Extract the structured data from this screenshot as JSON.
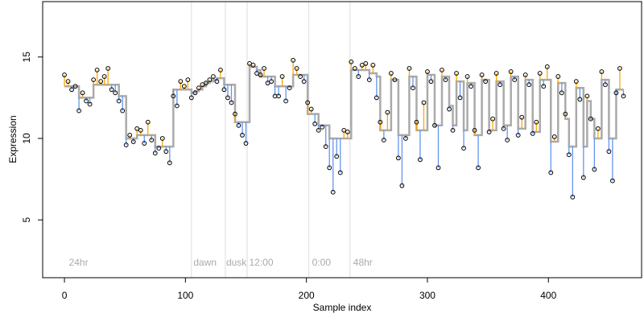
{
  "chart_data": {
    "type": "scatter",
    "xlabel": "Sample index",
    "ylabel": "Expression",
    "xlim": [
      -18,
      477
    ],
    "ylim": [
      1.45,
      18.4
    ],
    "xticks": [
      0,
      100,
      200,
      300,
      400
    ],
    "yticks": [
      5,
      10,
      15
    ],
    "point_color": "#000000",
    "fit_color": "#aaaaaa",
    "above_color": "#ffa500",
    "below_color": "#6495ed",
    "vlines": [
      105,
      133,
      151,
      202,
      236
    ],
    "vline_color": "#dddddd",
    "annotations": [
      {
        "x": 3,
        "text": "24hr"
      },
      {
        "x": 106,
        "text": "dawn"
      },
      {
        "x": 133,
        "text": "dusk"
      },
      {
        "x": 152,
        "text": "12:00"
      },
      {
        "x": 204,
        "text": "0:00"
      },
      {
        "x": 238,
        "text": "48hr"
      }
    ],
    "annotation_y": 2.2,
    "x": [
      0,
      3,
      6,
      9,
      12,
      15,
      18,
      21,
      24,
      27,
      30,
      33,
      36,
      39,
      42,
      45,
      48,
      51,
      54,
      57,
      60,
      63,
      66,
      69,
      72,
      75,
      78,
      81,
      84,
      87,
      90,
      93,
      96,
      99,
      102,
      105,
      108,
      111,
      114,
      117,
      120,
      123,
      126,
      129,
      132,
      135,
      138,
      141,
      144,
      147,
      150,
      153,
      156,
      159,
      162,
      165,
      168,
      171,
      174,
      177,
      180,
      183,
      186,
      189,
      192,
      195,
      198,
      201,
      204,
      207,
      210,
      213,
      216,
      219,
      222,
      225,
      228,
      231,
      234,
      237,
      240,
      243,
      246,
      249,
      252,
      255,
      258,
      261,
      264,
      267,
      270,
      273,
      276,
      279,
      282,
      285,
      288,
      291,
      294,
      297,
      300,
      303,
      306,
      309,
      312,
      315,
      318,
      321,
      324,
      327,
      330,
      333,
      336,
      339,
      342,
      345,
      348,
      351,
      354,
      357,
      360,
      363,
      366,
      369,
      372,
      375,
      378,
      381,
      384,
      387,
      390,
      393,
      396,
      399,
      402,
      405,
      408,
      411,
      414,
      417,
      420,
      423,
      426,
      429,
      432,
      435,
      438,
      441,
      444,
      447,
      450,
      453,
      456,
      459,
      462
    ],
    "values": [
      13.9,
      13.5,
      13.0,
      13.2,
      11.7,
      12.8,
      12.3,
      12.1,
      13.6,
      14.2,
      13.5,
      13.8,
      14.3,
      13.0,
      12.8,
      12.3,
      11.7,
      9.6,
      10.2,
      9.8,
      10.6,
      10.5,
      9.7,
      11.0,
      9.9,
      9.1,
      9.4,
      10.0,
      9.2,
      8.5,
      12.6,
      12.0,
      13.5,
      13.2,
      13.6,
      12.5,
      12.8,
      13.1,
      13.3,
      13.4,
      13.6,
      13.8,
      13.5,
      14.2,
      13.0,
      12.5,
      12.2,
      11.5,
      10.8,
      10.2,
      9.7,
      14.6,
      14.5,
      14.0,
      13.9,
      14.3,
      13.4,
      13.5,
      12.6,
      12.6,
      13.8,
      12.3,
      13.1,
      14.8,
      14.3,
      13.8,
      13.5,
      12.2,
      11.8,
      10.9,
      10.5,
      10.7,
      9.5,
      8.2,
      6.7,
      8.9,
      7.9,
      10.5,
      10.4,
      14.7,
      14.3,
      13.8,
      14.5,
      14.6,
      13.6,
      14.5,
      12.5,
      11.0,
      9.9,
      11.6,
      14.0,
      13.6,
      8.8,
      7.1,
      10.0,
      14.3,
      13.1,
      11.0,
      8.7,
      12.2,
      14.1,
      13.5,
      10.8,
      8.2,
      14.2,
      13.6,
      11.8,
      10.5,
      14.0,
      12.5,
      9.4,
      13.8,
      13.2,
      10.5,
      8.2,
      13.9,
      13.5,
      10.4,
      11.2,
      14.0,
      13.3,
      10.6,
      9.9,
      14.1,
      13.6,
      10.2,
      11.3,
      13.9,
      13.3,
      10.3,
      11.0,
      14.0,
      13.2,
      14.4,
      7.9,
      10.1,
      13.8,
      12.8,
      11.5,
      9.0,
      6.4,
      13.5,
      12.4,
      7.6,
      12.6,
      11.2,
      8.1,
      10.6,
      14.1,
      13.3,
      9.2,
      7.4,
      12.8,
      14.3,
      12.6
    ],
    "fitted": [
      13.2,
      13.2,
      13.2,
      13.2,
      12.5,
      12.5,
      12.5,
      12.5,
      13.3,
      13.3,
      13.3,
      13.3,
      13.3,
      13.3,
      13.3,
      12.6,
      12.6,
      10.0,
      10.0,
      10.0,
      10.2,
      10.2,
      10.2,
      10.2,
      10.2,
      9.5,
      9.5,
      9.5,
      9.5,
      9.5,
      13.0,
      13.0,
      13.0,
      13.0,
      13.0,
      12.8,
      12.9,
      13.0,
      13.2,
      13.4,
      13.5,
      13.6,
      13.7,
      13.7,
      13.3,
      13.3,
      13.3,
      11.0,
      11.0,
      11.0,
      11.0,
      14.4,
      14.4,
      14.2,
      13.8,
      13.8,
      13.8,
      13.8,
      13.2,
      13.2,
      13.2,
      13.2,
      13.2,
      13.9,
      13.9,
      13.9,
      13.9,
      11.5,
      11.5,
      11.5,
      10.8,
      10.8,
      10.8,
      10.0,
      10.0,
      10.0,
      10.0,
      10.0,
      10.0,
      14.2,
      14.2,
      14.2,
      14.2,
      14.2,
      14.0,
      14.0,
      13.8,
      10.5,
      10.5,
      10.5,
      13.6,
      13.6,
      10.2,
      10.2,
      10.2,
      13.8,
      13.8,
      10.5,
      10.5,
      10.5,
      13.9,
      13.9,
      10.8,
      10.8,
      13.8,
      13.8,
      12.0,
      10.8,
      13.5,
      13.5,
      10.5,
      13.4,
      13.4,
      10.2,
      10.2,
      13.6,
      13.6,
      10.5,
      10.5,
      13.5,
      13.5,
      10.8,
      10.8,
      13.8,
      13.8,
      10.6,
      10.6,
      13.6,
      13.6,
      10.4,
      10.4,
      13.6,
      13.6,
      13.6,
      9.8,
      9.8,
      13.4,
      13.4,
      11.2,
      9.5,
      9.5,
      13.1,
      13.1,
      9.5,
      12.3,
      11.2,
      10.0,
      10.0,
      13.6,
      13.6,
      10.0,
      10.0,
      13.0,
      13.0,
      13.0
    ]
  }
}
